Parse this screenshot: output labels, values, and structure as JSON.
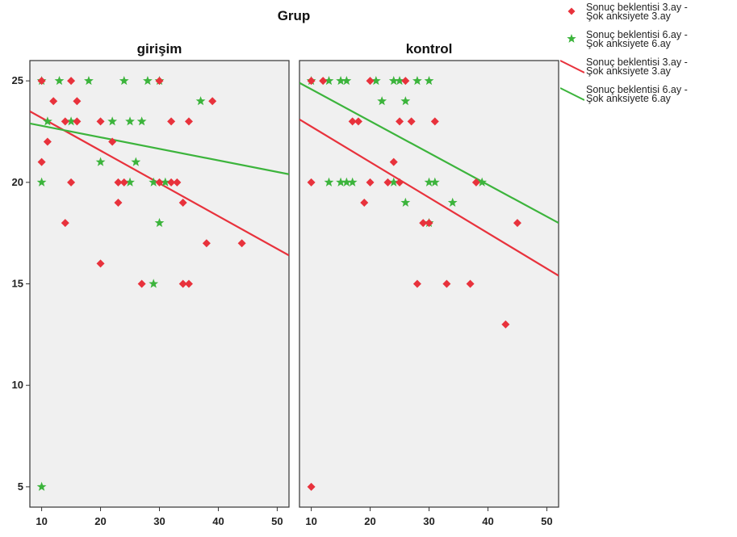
{
  "chart_data": {
    "type": "scatter",
    "title": "Grup",
    "xlim": [
      8,
      52
    ],
    "ylim": [
      4,
      26
    ],
    "x_ticks": [
      10,
      20,
      30,
      40,
      50
    ],
    "y_ticks": [
      5,
      10,
      15,
      20,
      25
    ],
    "colors": {
      "series_3ay": "#e8323c",
      "series_6ay": "#3cb43c",
      "panel_bg": "#f0f0f0"
    },
    "legend": [
      {
        "label": "Sonuç beklentisi 3.ay -\nŞok anksiyete 3.ay",
        "symbol": "diamond",
        "color": "#e8323c"
      },
      {
        "label": "Sonuç beklentisi 6.ay -\nŞok anksiyete 6.ay",
        "symbol": "star",
        "color": "#3cb43c"
      },
      {
        "label": "Sonuç beklentisi 3.ay -\nŞok anksiyete 3.ay",
        "symbol": "line",
        "color": "#e8323c"
      },
      {
        "label": "Sonuç beklentisi 6.ay -\nŞok anksiyete 6.ay",
        "symbol": "line",
        "color": "#3cb43c"
      }
    ],
    "panels": [
      {
        "name": "girişim",
        "series": [
          {
            "marker": "diamond",
            "color": "#e8323c",
            "points": [
              [
                10,
                25
              ],
              [
                12,
                24
              ],
              [
                15,
                25
              ],
              [
                16,
                24
              ],
              [
                11,
                22
              ],
              [
                10,
                21
              ],
              [
                14,
                23
              ],
              [
                16,
                23
              ],
              [
                20,
                23
              ],
              [
                22,
                22
              ],
              [
                23,
                20
              ],
              [
                24,
                20
              ],
              [
                23,
                19
              ],
              [
                15,
                20
              ],
              [
                14,
                18
              ],
              [
                20,
                16
              ],
              [
                27,
                15
              ],
              [
                34,
                15
              ],
              [
                35,
                15
              ],
              [
                30,
                20
              ],
              [
                32,
                20
              ],
              [
                33,
                20
              ],
              [
                34,
                19
              ],
              [
                32,
                23
              ],
              [
                35,
                23
              ],
              [
                39,
                24
              ],
              [
                38,
                17
              ],
              [
                44,
                17
              ],
              [
                30,
                25
              ]
            ]
          },
          {
            "marker": "star",
            "color": "#3cb43c",
            "points": [
              [
                10,
                25
              ],
              [
                13,
                25
              ],
              [
                18,
                25
              ],
              [
                24,
                25
              ],
              [
                28,
                25
              ],
              [
                30,
                25
              ],
              [
                11,
                23
              ],
              [
                15,
                23
              ],
              [
                22,
                23
              ],
              [
                25,
                23
              ],
              [
                27,
                23
              ],
              [
                37,
                24
              ],
              [
                20,
                21
              ],
              [
                26,
                21
              ],
              [
                10,
                20
              ],
              [
                25,
                20
              ],
              [
                29,
                20
              ],
              [
                31,
                20
              ],
              [
                30,
                18
              ],
              [
                29,
                15
              ],
              [
                10,
                5
              ]
            ]
          }
        ],
        "fit_lines": [
          {
            "color": "#e8323c",
            "x": [
              8,
              52
            ],
            "y": [
              23.5,
              16.4
            ]
          },
          {
            "color": "#3cb43c",
            "x": [
              8,
              52
            ],
            "y": [
              22.9,
              20.4
            ]
          }
        ]
      },
      {
        "name": "kontrol",
        "series": [
          {
            "marker": "diamond",
            "color": "#e8323c",
            "points": [
              [
                10,
                25
              ],
              [
                12,
                25
              ],
              [
                20,
                25
              ],
              [
                26,
                25
              ],
              [
                17,
                23
              ],
              [
                18,
                23
              ],
              [
                25,
                23
              ],
              [
                27,
                23
              ],
              [
                31,
                23
              ],
              [
                24,
                21
              ],
              [
                10,
                20
              ],
              [
                20,
                20
              ],
              [
                23,
                20
              ],
              [
                25,
                20
              ],
              [
                38,
                20
              ],
              [
                19,
                19
              ],
              [
                29,
                18
              ],
              [
                30,
                18
              ],
              [
                45,
                18
              ],
              [
                28,
                15
              ],
              [
                33,
                15
              ],
              [
                37,
                15
              ],
              [
                43,
                13
              ],
              [
                10,
                5
              ]
            ]
          },
          {
            "marker": "star",
            "color": "#3cb43c",
            "points": [
              [
                10,
                25
              ],
              [
                13,
                25
              ],
              [
                15,
                25
              ],
              [
                16,
                25
              ],
              [
                21,
                25
              ],
              [
                24,
                25
              ],
              [
                25,
                25
              ],
              [
                28,
                25
              ],
              [
                30,
                25
              ],
              [
                22,
                24
              ],
              [
                26,
                24
              ],
              [
                13,
                20
              ],
              [
                15,
                20
              ],
              [
                16,
                20
              ],
              [
                17,
                20
              ],
              [
                24,
                20
              ],
              [
                30,
                20
              ],
              [
                31,
                20
              ],
              [
                39,
                20
              ],
              [
                26,
                19
              ],
              [
                34,
                19
              ],
              [
                30,
                18
              ]
            ]
          }
        ],
        "fit_lines": [
          {
            "color": "#e8323c",
            "x": [
              8,
              52
            ],
            "y": [
              23.1,
              15.4
            ]
          },
          {
            "color": "#3cb43c",
            "x": [
              8,
              52
            ],
            "y": [
              24.9,
              18.0
            ]
          }
        ]
      }
    ]
  }
}
